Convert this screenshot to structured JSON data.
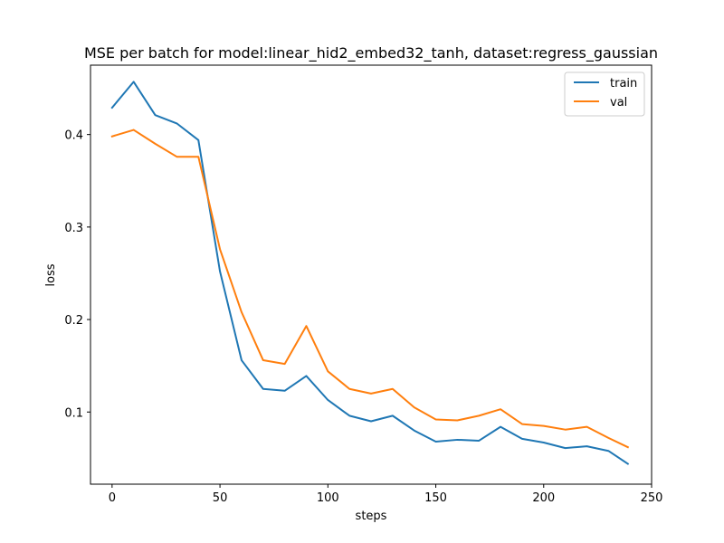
{
  "chart_data": {
    "type": "line",
    "title": "MSE per batch for model:linear_hid2_embed32_tanh, dataset:regress_gaussian",
    "xlabel": "steps",
    "ylabel": "loss",
    "xlim": [
      -10,
      250
    ],
    "ylim": [
      0.022,
      0.475
    ],
    "xticks": [
      0,
      50,
      100,
      150,
      200,
      250
    ],
    "xtick_labels": [
      "0",
      "50",
      "100",
      "150",
      "200",
      "250"
    ],
    "yticks": [
      0.1,
      0.2,
      0.3,
      0.4
    ],
    "ytick_labels": [
      "0.1",
      "0.2",
      "0.3",
      "0.4"
    ],
    "grid": false,
    "legend_position": "top-right",
    "x": [
      0,
      10,
      20,
      30,
      40,
      50,
      60,
      70,
      80,
      90,
      100,
      110,
      120,
      130,
      140,
      150,
      160,
      170,
      180,
      190,
      200,
      210,
      220,
      230,
      239
    ],
    "series": [
      {
        "name": "train",
        "color": "#1f77b4",
        "values": [
          0.429,
          0.457,
          0.421,
          0.412,
          0.394,
          0.252,
          0.156,
          0.125,
          0.123,
          0.139,
          0.113,
          0.096,
          0.09,
          0.096,
          0.08,
          0.068,
          0.07,
          0.069,
          0.084,
          0.071,
          0.067,
          0.061,
          0.063,
          0.058,
          0.044
        ]
      },
      {
        "name": "val",
        "color": "#ff7f0e",
        "values": [
          0.398,
          0.405,
          0.39,
          0.376,
          0.376,
          0.276,
          0.208,
          0.156,
          0.152,
          0.193,
          0.144,
          0.125,
          0.12,
          0.125,
          0.105,
          0.092,
          0.091,
          0.096,
          0.103,
          0.087,
          0.085,
          0.081,
          0.084,
          0.072,
          0.062
        ]
      }
    ]
  }
}
